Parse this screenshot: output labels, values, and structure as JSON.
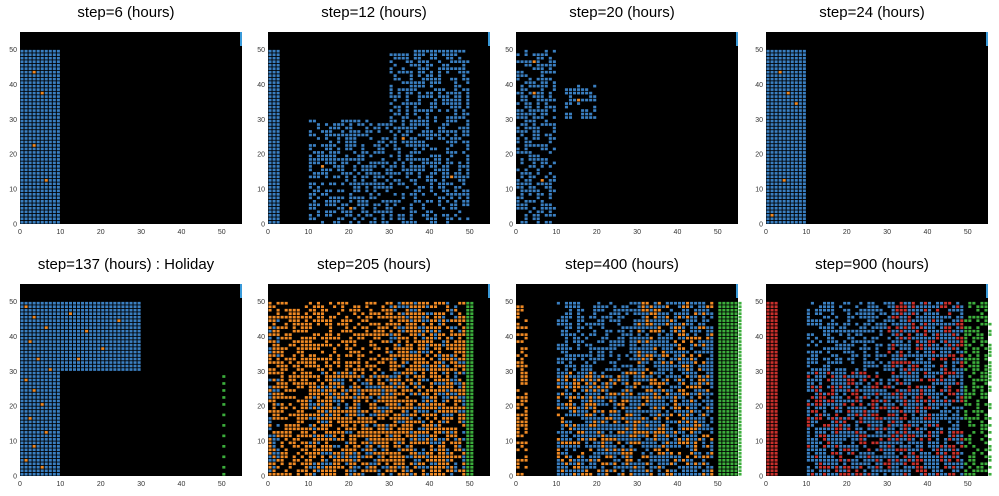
{
  "panels": [
    {
      "title": "step=6 (hours)",
      "step": 6
    },
    {
      "title": "step=12 (hours)",
      "step": 12
    },
    {
      "title": "step=20 (hours)",
      "step": 20
    },
    {
      "title": "step=24 (hours)",
      "step": 24
    },
    {
      "title": "step=137 (hours) : Holiday",
      "step": 137
    },
    {
      "title": "step=205 (hours)",
      "step": 205
    },
    {
      "title": "step=400 (hours)",
      "step": 400
    },
    {
      "title": "step=900 (hours)",
      "step": 900
    }
  ],
  "colors": {
    "background": "#000000",
    "blue": "#3a7fc1",
    "orange": "#f08a24",
    "green": "#3cae3c",
    "red": "#c9302c",
    "accent_bar": "#3a9ad9"
  },
  "chart_data": [
    {
      "type": "scatter",
      "title": "step=6 (hours)",
      "xlim": [
        0,
        55
      ],
      "ylim": [
        0,
        55
      ],
      "x_ticks": [
        0,
        10,
        20,
        30,
        40,
        50
      ],
      "y_ticks": [
        0,
        10,
        20,
        30,
        40,
        50
      ],
      "regions": [
        {
          "color": "blue",
          "x": [
            0,
            9
          ],
          "y": [
            0,
            49
          ]
        }
      ],
      "points": {
        "orange": [
          [
            3,
            43
          ],
          [
            5,
            37
          ],
          [
            3,
            22
          ],
          [
            6,
            12
          ]
        ]
      }
    },
    {
      "type": "scatter",
      "title": "step=12 (hours)",
      "xlim": [
        0,
        55
      ],
      "ylim": [
        0,
        55
      ],
      "x_ticks": [
        0,
        10,
        20,
        30,
        40,
        50
      ],
      "y_ticks": [
        0,
        10,
        20,
        30,
        40,
        50
      ],
      "regions": [
        {
          "color": "blue",
          "x": [
            0,
            2
          ],
          "y": [
            0,
            49
          ]
        },
        {
          "color": "blue",
          "x": [
            10,
            49
          ],
          "y": [
            0,
            29
          ],
          "sparse": true
        },
        {
          "color": "blue",
          "x": [
            30,
            49
          ],
          "y": [
            30,
            49
          ],
          "sparse": true
        }
      ],
      "points": {
        "orange": [
          [
            33,
            24
          ],
          [
            45,
            13
          ],
          [
            20,
            4
          ],
          [
            13,
            16
          ]
        ]
      }
    },
    {
      "type": "scatter",
      "title": "step=20 (hours)",
      "xlim": [
        0,
        55
      ],
      "ylim": [
        0,
        55
      ],
      "x_ticks": [
        0,
        10,
        20,
        30,
        40,
        50
      ],
      "y_ticks": [
        0,
        10,
        20,
        30,
        40,
        50
      ],
      "regions": [
        {
          "color": "blue",
          "x": [
            0,
            9
          ],
          "y": [
            0,
            49
          ],
          "sparse": true
        },
        {
          "color": "blue",
          "x": [
            12,
            19
          ],
          "y": [
            30,
            39
          ],
          "sparse": true
        }
      ],
      "points": {
        "orange": [
          [
            4,
            46
          ],
          [
            4,
            37
          ],
          [
            6,
            12
          ],
          [
            15,
            35
          ]
        ]
      }
    },
    {
      "type": "scatter",
      "title": "step=24 (hours)",
      "xlim": [
        0,
        55
      ],
      "ylim": [
        0,
        55
      ],
      "x_ticks": [
        0,
        10,
        20,
        30,
        40,
        50
      ],
      "y_ticks": [
        0,
        10,
        20,
        30,
        40,
        50
      ],
      "regions": [
        {
          "color": "blue",
          "x": [
            0,
            9
          ],
          "y": [
            0,
            49
          ]
        }
      ],
      "points": {
        "orange": [
          [
            3,
            43
          ],
          [
            5,
            37
          ],
          [
            7,
            34
          ],
          [
            4,
            12
          ],
          [
            1,
            2
          ]
        ]
      }
    },
    {
      "type": "scatter",
      "title": "step=137 (hours) : Holiday",
      "xlim": [
        0,
        55
      ],
      "ylim": [
        0,
        55
      ],
      "x_ticks": [
        0,
        10,
        20,
        30,
        40,
        50
      ],
      "y_ticks": [
        0,
        10,
        20,
        30,
        40,
        50
      ],
      "regions": [
        {
          "color": "blue",
          "x": [
            0,
            9
          ],
          "y": [
            0,
            49
          ]
        },
        {
          "color": "blue",
          "x": [
            10,
            29
          ],
          "y": [
            30,
            49
          ]
        }
      ],
      "points": {
        "orange": [
          [
            1,
            48
          ],
          [
            3,
            45
          ],
          [
            6,
            42
          ],
          [
            2,
            38
          ],
          [
            4,
            33
          ],
          [
            7,
            30
          ],
          [
            1,
            27
          ],
          [
            3,
            24
          ],
          [
            5,
            20
          ],
          [
            2,
            16
          ],
          [
            6,
            12
          ],
          [
            3,
            8
          ],
          [
            1,
            4
          ],
          [
            5,
            2
          ],
          [
            12,
            46
          ],
          [
            16,
            41
          ],
          [
            20,
            36
          ],
          [
            24,
            44
          ],
          [
            14,
            33
          ]
        ],
        "green": [
          [
            50,
            28
          ],
          [
            50,
            26
          ],
          [
            50,
            24
          ],
          [
            50,
            22
          ],
          [
            50,
            20
          ],
          [
            50,
            17
          ],
          [
            50,
            14
          ],
          [
            50,
            11
          ],
          [
            50,
            8
          ],
          [
            50,
            5
          ],
          [
            50,
            2
          ],
          [
            50,
            0
          ]
        ]
      }
    },
    {
      "type": "scatter",
      "title": "step=205 (hours)",
      "xlim": [
        0,
        55
      ],
      "ylim": [
        0,
        55
      ],
      "x_ticks": [
        0,
        10,
        20,
        30,
        40,
        50
      ],
      "y_ticks": [
        0,
        10,
        20,
        30,
        40,
        50
      ],
      "regions": [
        {
          "color": "blue",
          "x": [
            0,
            2
          ],
          "y": [
            0,
            49
          ],
          "sparse": true
        },
        {
          "color": "blue",
          "x": [
            10,
            48
          ],
          "y": [
            0,
            29
          ],
          "sparse": true
        },
        {
          "color": "blue",
          "x": [
            30,
            48
          ],
          "y": [
            30,
            49
          ],
          "sparse": true
        },
        {
          "color": "orange",
          "x": [
            0,
            48
          ],
          "y": [
            0,
            49
          ],
          "sparse": true
        },
        {
          "color": "green",
          "x": [
            49,
            50
          ],
          "y": [
            0,
            49
          ]
        }
      ]
    },
    {
      "type": "scatter",
      "title": "step=400 (hours)",
      "xlim": [
        0,
        55
      ],
      "ylim": [
        0,
        55
      ],
      "x_ticks": [
        0,
        10,
        20,
        30,
        40,
        50
      ],
      "y_ticks": [
        0,
        10,
        20,
        30,
        40,
        50
      ],
      "regions": [
        {
          "color": "orange",
          "x": [
            0,
            2
          ],
          "y": [
            0,
            49
          ],
          "sparse": true
        },
        {
          "color": "orange",
          "x": [
            10,
            48
          ],
          "y": [
            0,
            29
          ],
          "sparse": true
        },
        {
          "color": "orange",
          "x": [
            30,
            48
          ],
          "y": [
            30,
            49
          ],
          "sparse": true
        },
        {
          "color": "blue",
          "x": [
            10,
            48
          ],
          "y": [
            0,
            49
          ],
          "sparse": true
        },
        {
          "color": "green",
          "x": [
            50,
            55
          ],
          "y": [
            0,
            49
          ]
        }
      ]
    },
    {
      "type": "scatter",
      "title": "step=900 (hours)",
      "xlim": [
        0,
        55
      ],
      "ylim": [
        0,
        55
      ],
      "x_ticks": [
        0,
        10,
        20,
        30,
        40,
        50
      ],
      "y_ticks": [
        0,
        10,
        20,
        30,
        40,
        50
      ],
      "regions": [
        {
          "color": "red",
          "x": [
            0,
            2
          ],
          "y": [
            0,
            49
          ]
        },
        {
          "color": "red",
          "x": [
            10,
            48
          ],
          "y": [
            0,
            29
          ],
          "sparse": true
        },
        {
          "color": "red",
          "x": [
            30,
            48
          ],
          "y": [
            30,
            49
          ],
          "sparse": true
        },
        {
          "color": "blue",
          "x": [
            10,
            48
          ],
          "y": [
            0,
            49
          ],
          "sparse": true
        },
        {
          "color": "green",
          "x": [
            49,
            55
          ],
          "y": [
            0,
            49
          ],
          "sparse": true
        }
      ]
    }
  ]
}
